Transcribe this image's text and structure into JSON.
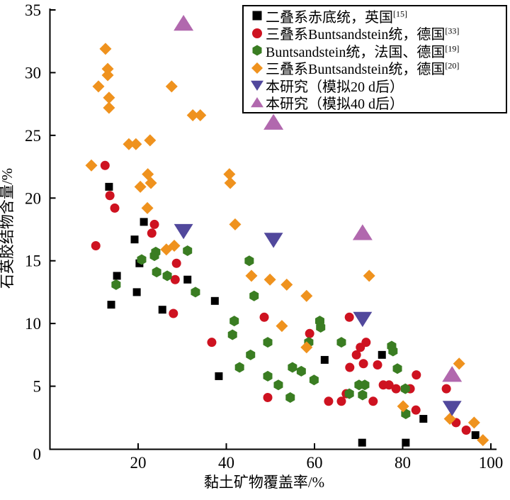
{
  "chart_data": {
    "type": "scatter",
    "title": "",
    "xlabel": "黏土矿物覆盖率/%",
    "ylabel": "石英胶结物含量/%",
    "xlim": [
      0,
      100
    ],
    "ylim": [
      0,
      35
    ],
    "xticks": [
      0,
      20,
      40,
      60,
      80,
      100
    ],
    "yticks": [
      0,
      5,
      10,
      15,
      20,
      25,
      30,
      35
    ],
    "grid": "off",
    "legend_position": "top-right",
    "series": [
      {
        "name": "二叠系赤底统，英国",
        "ref": "[15]",
        "marker": "square",
        "color": "#000000",
        "points": [
          [
            13.4,
            20.9
          ],
          [
            21.3,
            18.1
          ],
          [
            19.2,
            16.7
          ],
          [
            20.3,
            14.8
          ],
          [
            15.2,
            13.8
          ],
          [
            31.2,
            13.5
          ],
          [
            19.7,
            12.5
          ],
          [
            37.4,
            11.8
          ],
          [
            13.9,
            11.5
          ],
          [
            25.5,
            11.1
          ],
          [
            38.3,
            5.8
          ],
          [
            62.3,
            7.1
          ],
          [
            75.3,
            7.5
          ],
          [
            84.7,
            2.4
          ],
          [
            96.5,
            1.1
          ],
          [
            70.8,
            0.5
          ],
          [
            80.7,
            0.5
          ]
        ]
      },
      {
        "name": "三叠系Buntsandstein统，德国",
        "ref": "[33]",
        "marker": "circle",
        "color": "#ce1220",
        "points": [
          [
            12.5,
            22.6
          ],
          [
            13.6,
            20.2
          ],
          [
            14.7,
            19.2
          ],
          [
            23.7,
            17.9
          ],
          [
            23.1,
            17.2
          ],
          [
            10.4,
            16.2
          ],
          [
            28.7,
            14.8
          ],
          [
            28.4,
            13.5
          ],
          [
            28,
            10.8
          ],
          [
            48.6,
            10.5
          ],
          [
            58.9,
            9.2
          ],
          [
            36.7,
            8.5
          ],
          [
            49.4,
            4.1
          ],
          [
            63.2,
            3.8
          ],
          [
            66.1,
            3.8
          ],
          [
            67.2,
            4.4
          ],
          [
            67.9,
            10.5
          ],
          [
            71.7,
            8.5
          ],
          [
            70.4,
            8.1
          ],
          [
            69.5,
            7.5
          ],
          [
            71.1,
            6.8
          ],
          [
            74.3,
            6.7
          ],
          [
            68,
            6.5
          ],
          [
            83.1,
            5.9
          ],
          [
            75.6,
            5.1
          ],
          [
            76.9,
            5.1
          ],
          [
            78.5,
            4.8
          ],
          [
            81.7,
            4.8
          ],
          [
            73.3,
            3.8
          ],
          [
            83,
            3.1
          ],
          [
            89.9,
            4.8
          ],
          [
            92.1,
            2.1
          ],
          [
            94.4,
            1.5
          ]
        ]
      },
      {
        "name": "Buntsandstein统，法国、德国",
        "ref": "[19]",
        "marker": "hexagon",
        "color": "#3a7d22",
        "points": [
          [
            24,
            15.7
          ],
          [
            23.7,
            15.4
          ],
          [
            20.8,
            15.1
          ],
          [
            31.2,
            15.8
          ],
          [
            24.2,
            14.1
          ],
          [
            26.6,
            13.8
          ],
          [
            15,
            13.1
          ],
          [
            33,
            12.5
          ],
          [
            45.2,
            15
          ],
          [
            46.3,
            12.2
          ],
          [
            41.8,
            10.2
          ],
          [
            61.2,
            10.2
          ],
          [
            61.4,
            9.7
          ],
          [
            41.4,
            9.1
          ],
          [
            49.4,
            8.5
          ],
          [
            58.7,
            8.5
          ],
          [
            66.1,
            8.5
          ],
          [
            45.5,
            7.5
          ],
          [
            43,
            6.5
          ],
          [
            55,
            6.5
          ],
          [
            57,
            6.2
          ],
          [
            49.4,
            5.8
          ],
          [
            51.8,
            5.1
          ],
          [
            59.9,
            5.5
          ],
          [
            54.5,
            4.1
          ],
          [
            77.5,
            8.2
          ],
          [
            77.8,
            7.8
          ],
          [
            78.8,
            6.4
          ],
          [
            70.1,
            5.1
          ],
          [
            71.4,
            5.1
          ],
          [
            67.9,
            4.4
          ],
          [
            70.9,
            4.3
          ],
          [
            80.6,
            4.8
          ],
          [
            80.7,
            2.8
          ]
        ]
      },
      {
        "name": "三叠系Buntsandstein统，德国",
        "ref": "[20]",
        "marker": "diamond",
        "color": "#ef921e",
        "points": [
          [
            12.6,
            31.9
          ],
          [
            13.1,
            30.3
          ],
          [
            13.1,
            29.8
          ],
          [
            11,
            28.9
          ],
          [
            13.4,
            28
          ],
          [
            13.4,
            27.2
          ],
          [
            27.6,
            28.9
          ],
          [
            32.4,
            26.6
          ],
          [
            34.1,
            26.6
          ],
          [
            17.9,
            24.3
          ],
          [
            19.5,
            24.3
          ],
          [
            22.7,
            24.6
          ],
          [
            9.4,
            22.6
          ],
          [
            22.2,
            21.9
          ],
          [
            22.9,
            21.2
          ],
          [
            20.5,
            20.9
          ],
          [
            40.7,
            21.9
          ],
          [
            40.9,
            21.2
          ],
          [
            22.1,
            19.2
          ],
          [
            42,
            17.9
          ],
          [
            26.4,
            15.9
          ],
          [
            28.2,
            16.2
          ],
          [
            45.7,
            13.8
          ],
          [
            49.9,
            13.5
          ],
          [
            53.7,
            13.1
          ],
          [
            58.2,
            12.2
          ],
          [
            72.4,
            13.8
          ],
          [
            52.6,
            9.8
          ],
          [
            58.2,
            8.1
          ],
          [
            80.1,
            3.4
          ],
          [
            92.8,
            6.8
          ],
          [
            90.7,
            2.4
          ],
          [
            96.2,
            2.1
          ],
          [
            98.2,
            0.7
          ]
        ]
      },
      {
        "name": "本研究（模拟20 d后）",
        "ref": "",
        "marker": "triangle-down",
        "color": "#51489c",
        "points": [
          [
            30.3,
            17.4
          ],
          [
            50.7,
            16.7
          ],
          [
            70.9,
            10.4
          ],
          [
            91.2,
            3.3
          ]
        ]
      },
      {
        "name": "本研究（模拟40 d后）",
        "ref": "",
        "marker": "triangle-up",
        "color": "#b168ae",
        "points": [
          [
            30.3,
            33.9
          ],
          [
            50.7,
            26
          ],
          [
            70.9,
            17.2
          ],
          [
            91.2,
            5.9
          ]
        ]
      }
    ]
  }
}
